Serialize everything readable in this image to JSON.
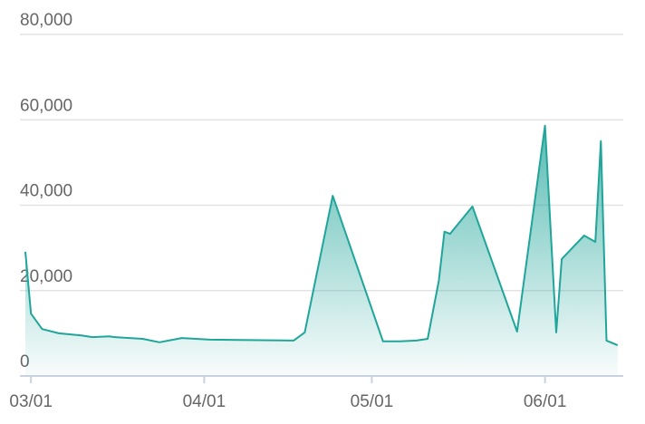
{
  "chart_data": {
    "type": "area",
    "x": [
      "02/28",
      "03/01",
      "03/03",
      "03/06",
      "03/10",
      "03/12",
      "03/15",
      "03/16",
      "03/21",
      "03/24",
      "03/28",
      "04/02",
      "04/17",
      "04/19",
      "04/24",
      "05/03",
      "05/06",
      "05/09",
      "05/11",
      "05/13",
      "05/14",
      "05/15",
      "05/19",
      "05/27",
      "06/01",
      "06/03",
      "06/04",
      "06/08",
      "06/10",
      "06/11",
      "06/12",
      "06/14"
    ],
    "series": [
      {
        "color": "#20a59a",
        "values": [
          29100,
          14600,
          11000,
          10000,
          9500,
          9100,
          9300,
          9100,
          8700,
          7900,
          8900,
          8500,
          8300,
          10200,
          42200,
          8100,
          8100,
          8300,
          8700,
          22300,
          33800,
          33300,
          39700,
          10400,
          58600,
          10200,
          27400,
          32900,
          31400,
          55000,
          8300,
          7200
        ]
      }
    ],
    "xlim": [
      "02/28",
      "06/15"
    ],
    "xticks": [
      "03/01",
      "04/01",
      "05/01",
      "06/01"
    ],
    "ylim": [
      0,
      80000
    ],
    "yticks": [
      0,
      {
        "value": 20000,
        "label": "20,000"
      },
      {
        "value": 40000,
        "label": "40,000"
      },
      {
        "value": 60000,
        "label": "60,000"
      },
      {
        "value": 80000,
        "label": "80,000"
      }
    ],
    "grid": true
  }
}
